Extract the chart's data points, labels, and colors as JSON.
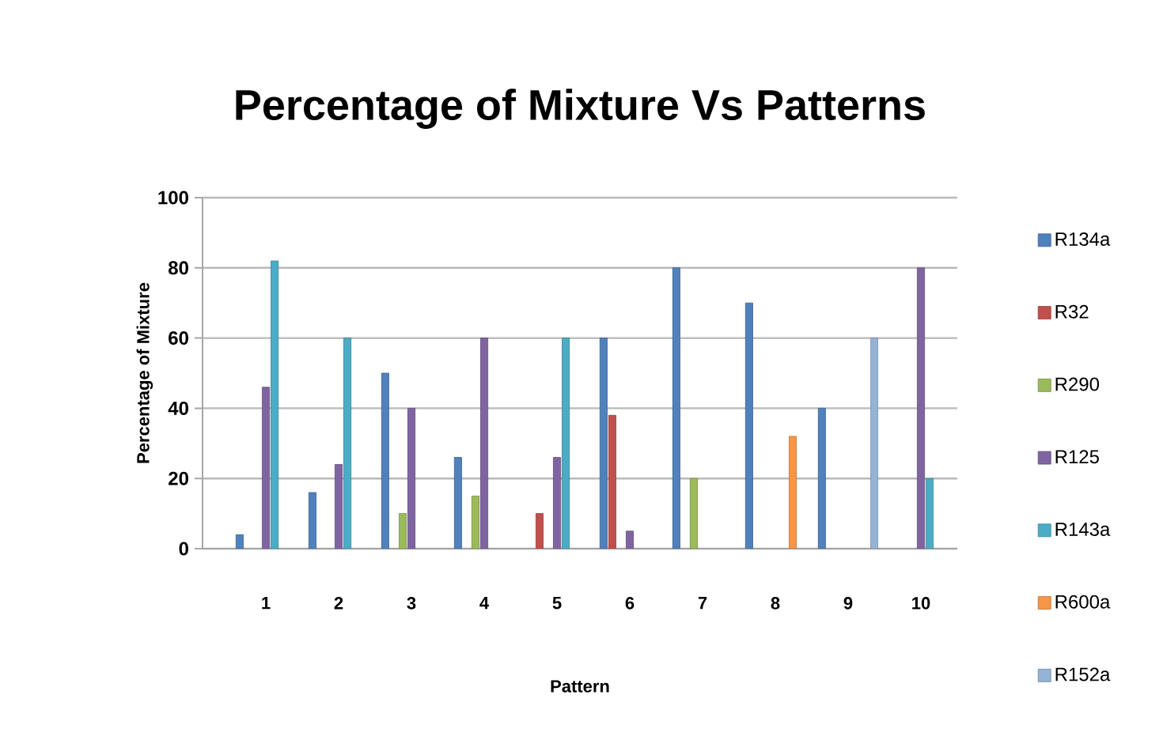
{
  "chart_data": {
    "type": "bar",
    "title": "Percentage of Mixture Vs Patterns",
    "xlabel": "Pattern",
    "ylabel": "Percentage of Mixture",
    "categories": [
      "1",
      "2",
      "3",
      "4",
      "5",
      "6",
      "7",
      "8",
      "9",
      "10"
    ],
    "series": [
      {
        "name": "R134a",
        "color": "#4f81bd",
        "values": [
          4,
          16,
          50,
          26,
          null,
          60,
          80,
          70,
          40,
          null
        ]
      },
      {
        "name": "R32",
        "color": "#c0504d",
        "values": [
          null,
          null,
          null,
          null,
          10,
          38,
          null,
          null,
          null,
          null
        ]
      },
      {
        "name": "R290",
        "color": "#9bbb59",
        "values": [
          null,
          null,
          10,
          15,
          null,
          null,
          20,
          null,
          null,
          null
        ]
      },
      {
        "name": "R125",
        "color": "#8064a2",
        "values": [
          46,
          24,
          40,
          60,
          26,
          5,
          null,
          null,
          null,
          80
        ]
      },
      {
        "name": "R143a",
        "color": "#4bacc6",
        "values": [
          82,
          60,
          null,
          null,
          60,
          null,
          null,
          null,
          null,
          20
        ]
      },
      {
        "name": "R600a",
        "color": "#f79646",
        "values": [
          null,
          null,
          null,
          null,
          null,
          null,
          null,
          32,
          null,
          null
        ]
      },
      {
        "name": "R152a",
        "color": "#95b3d7",
        "values": [
          null,
          null,
          null,
          null,
          null,
          null,
          null,
          null,
          60,
          null
        ]
      }
    ],
    "ylim": [
      0,
      100
    ],
    "yticks": [
      0,
      20,
      40,
      60,
      80,
      100
    ],
    "grid": "y",
    "legend": "right"
  }
}
